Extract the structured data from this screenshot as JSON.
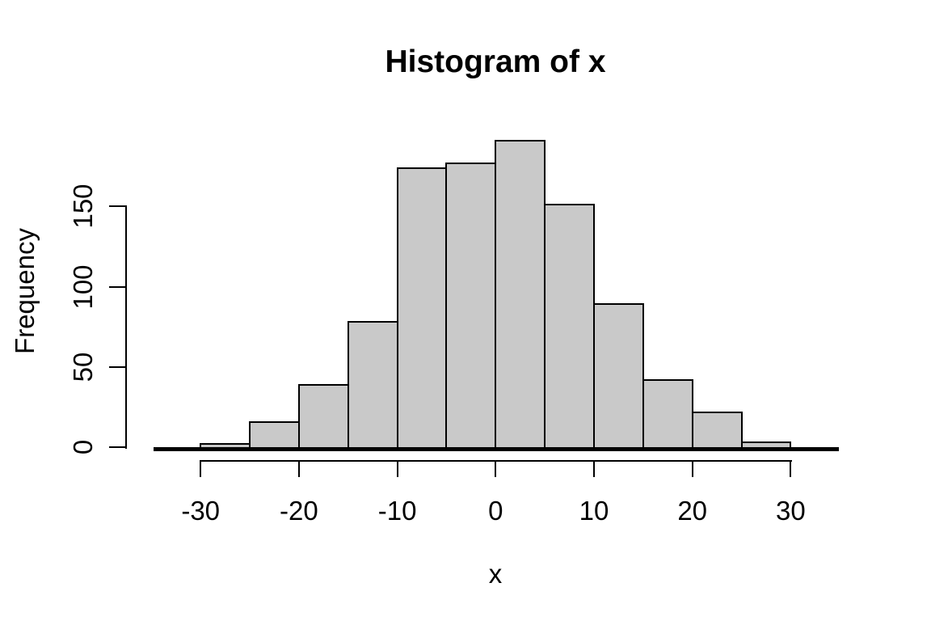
{
  "chart_data": {
    "type": "histogram",
    "title": "Histogram of x",
    "xlabel": "x",
    "ylabel": "Frequency",
    "bin_edges": [
      -30,
      -25,
      -20,
      -15,
      -10,
      -5,
      0,
      5,
      10,
      15,
      20,
      25,
      30
    ],
    "counts": [
      2,
      16,
      39,
      78,
      174,
      177,
      191,
      151,
      89,
      42,
      22,
      3
    ],
    "x_ticks": [
      "-30",
      "-20",
      "-10",
      "0",
      "10",
      "20",
      "30"
    ],
    "x_tick_values": [
      -30,
      -20,
      -10,
      0,
      10,
      20,
      30
    ],
    "y_ticks": [
      "0",
      "50",
      "100",
      "150"
    ],
    "y_tick_values": [
      0,
      50,
      100,
      150
    ],
    "x_axis_range": [
      -30,
      30
    ],
    "y_axis_range": [
      0,
      150
    ],
    "ylim": [
      0,
      191
    ],
    "grid": false,
    "legend": null,
    "bar_fill": "#C9C9C9",
    "bar_border": "#000000",
    "text_color": "#000000",
    "background": "#FFFFFF"
  }
}
